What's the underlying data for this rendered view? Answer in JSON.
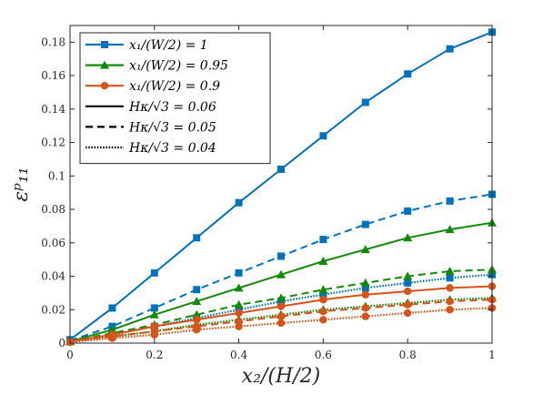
{
  "chart_data": {
    "type": "line",
    "xlabel": "x₂/(H/2)",
    "ylabel": "εᵖ₁₁",
    "xlim": [
      0,
      1
    ],
    "ylim": [
      0,
      0.19
    ],
    "x_ticks": [
      "0",
      "0.2",
      "0.4",
      "0.6",
      "0.8",
      "1"
    ],
    "x_tick_values": [
      0,
      0.2,
      0.4,
      0.6,
      0.8,
      1
    ],
    "y_ticks": [
      "0",
      "0.02",
      "0.04",
      "0.06",
      "0.08",
      "0.1",
      "0.12",
      "0.14",
      "0.16",
      "0.18"
    ],
    "y_tick_values": [
      0,
      0.02,
      0.04,
      0.06,
      0.08,
      0.1,
      0.12,
      0.14,
      0.16,
      0.18
    ],
    "grid": false,
    "legend_position": "top-left",
    "legend": [
      {
        "label": "x₁/(W/2) = 1",
        "color": "#0072BD",
        "marker": "square",
        "dash": "solid"
      },
      {
        "label": "x₁/(W/2) = 0.95",
        "color": "#138A07",
        "marker": "triangle",
        "dash": "solid"
      },
      {
        "label": "x₁/(W/2) = 0.9",
        "color": "#D95319",
        "marker": "circle",
        "dash": "solid"
      },
      {
        "label": "Hκ/√3 = 0.06",
        "color": "#000000",
        "marker": "none",
        "dash": "solid"
      },
      {
        "label": "Hκ/√3 = 0.05",
        "color": "#000000",
        "marker": "none",
        "dash": "dashed"
      },
      {
        "label": "Hκ/√3 = 0.04",
        "color": "#000000",
        "marker": "none",
        "dash": "dotted"
      }
    ],
    "x": [
      0,
      0.1,
      0.2,
      0.3,
      0.4,
      0.5,
      0.6,
      0.7,
      0.8,
      0.9,
      1.0
    ],
    "series": [
      {
        "name": "x₁/(W/2) = 1, Hκ/√3 = 0.06",
        "color": "#0072BD",
        "marker": "square",
        "dash": "solid",
        "values": [
          0.002,
          0.021,
          0.042,
          0.063,
          0.084,
          0.104,
          0.124,
          0.144,
          0.161,
          0.176,
          0.186
        ]
      },
      {
        "name": "x₁/(W/2) = 1, Hκ/√3 = 0.05",
        "color": "#0072BD",
        "marker": "square",
        "dash": "dashed",
        "values": [
          0.0015,
          0.01,
          0.021,
          0.032,
          0.042,
          0.052,
          0.062,
          0.071,
          0.079,
          0.085,
          0.089
        ]
      },
      {
        "name": "x₁/(W/2) = 1, Hκ/√3 = 0.04",
        "color": "#0072BD",
        "marker": "square",
        "dash": "dotted",
        "values": [
          0.001,
          0.005,
          0.01,
          0.015,
          0.02,
          0.025,
          0.029,
          0.033,
          0.036,
          0.039,
          0.041
        ]
      },
      {
        "name": "x₁/(W/2) = 0.95, Hκ/√3 = 0.06",
        "color": "#138A07",
        "marker": "triangle",
        "dash": "solid",
        "values": [
          0.001,
          0.008,
          0.017,
          0.025,
          0.033,
          0.041,
          0.049,
          0.056,
          0.063,
          0.068,
          0.072
        ]
      },
      {
        "name": "x₁/(W/2) = 0.95, Hκ/√3 = 0.05",
        "color": "#138A07",
        "marker": "triangle",
        "dash": "dashed",
        "values": [
          0.001,
          0.006,
          0.011,
          0.017,
          0.023,
          0.027,
          0.032,
          0.036,
          0.04,
          0.043,
          0.044
        ]
      },
      {
        "name": "x₁/(W/2) = 0.95, Hκ/√3 = 0.04",
        "color": "#138A07",
        "marker": "triangle",
        "dash": "dotted",
        "values": [
          0.001,
          0.004,
          0.007,
          0.011,
          0.014,
          0.017,
          0.02,
          0.022,
          0.024,
          0.026,
          0.027
        ]
      },
      {
        "name": "x₁/(W/2) = 0.9, Hκ/√3 = 0.06",
        "color": "#D95319",
        "marker": "circle",
        "dash": "solid",
        "values": [
          0.001,
          0.005,
          0.01,
          0.014,
          0.018,
          0.022,
          0.026,
          0.029,
          0.031,
          0.033,
          0.034
        ]
      },
      {
        "name": "x₁/(W/2) = 0.9, Hκ/√3 = 0.05",
        "color": "#D95319",
        "marker": "circle",
        "dash": "dashed",
        "values": [
          0.001,
          0.004,
          0.007,
          0.01,
          0.013,
          0.016,
          0.019,
          0.021,
          0.023,
          0.025,
          0.026
        ]
      },
      {
        "name": "x₁/(W/2) = 0.9, Hκ/√3 = 0.04",
        "color": "#D95319",
        "marker": "circle",
        "dash": "dotted",
        "values": [
          0.0005,
          0.003,
          0.005,
          0.008,
          0.01,
          0.012,
          0.014,
          0.016,
          0.018,
          0.02,
          0.021
        ]
      }
    ]
  }
}
